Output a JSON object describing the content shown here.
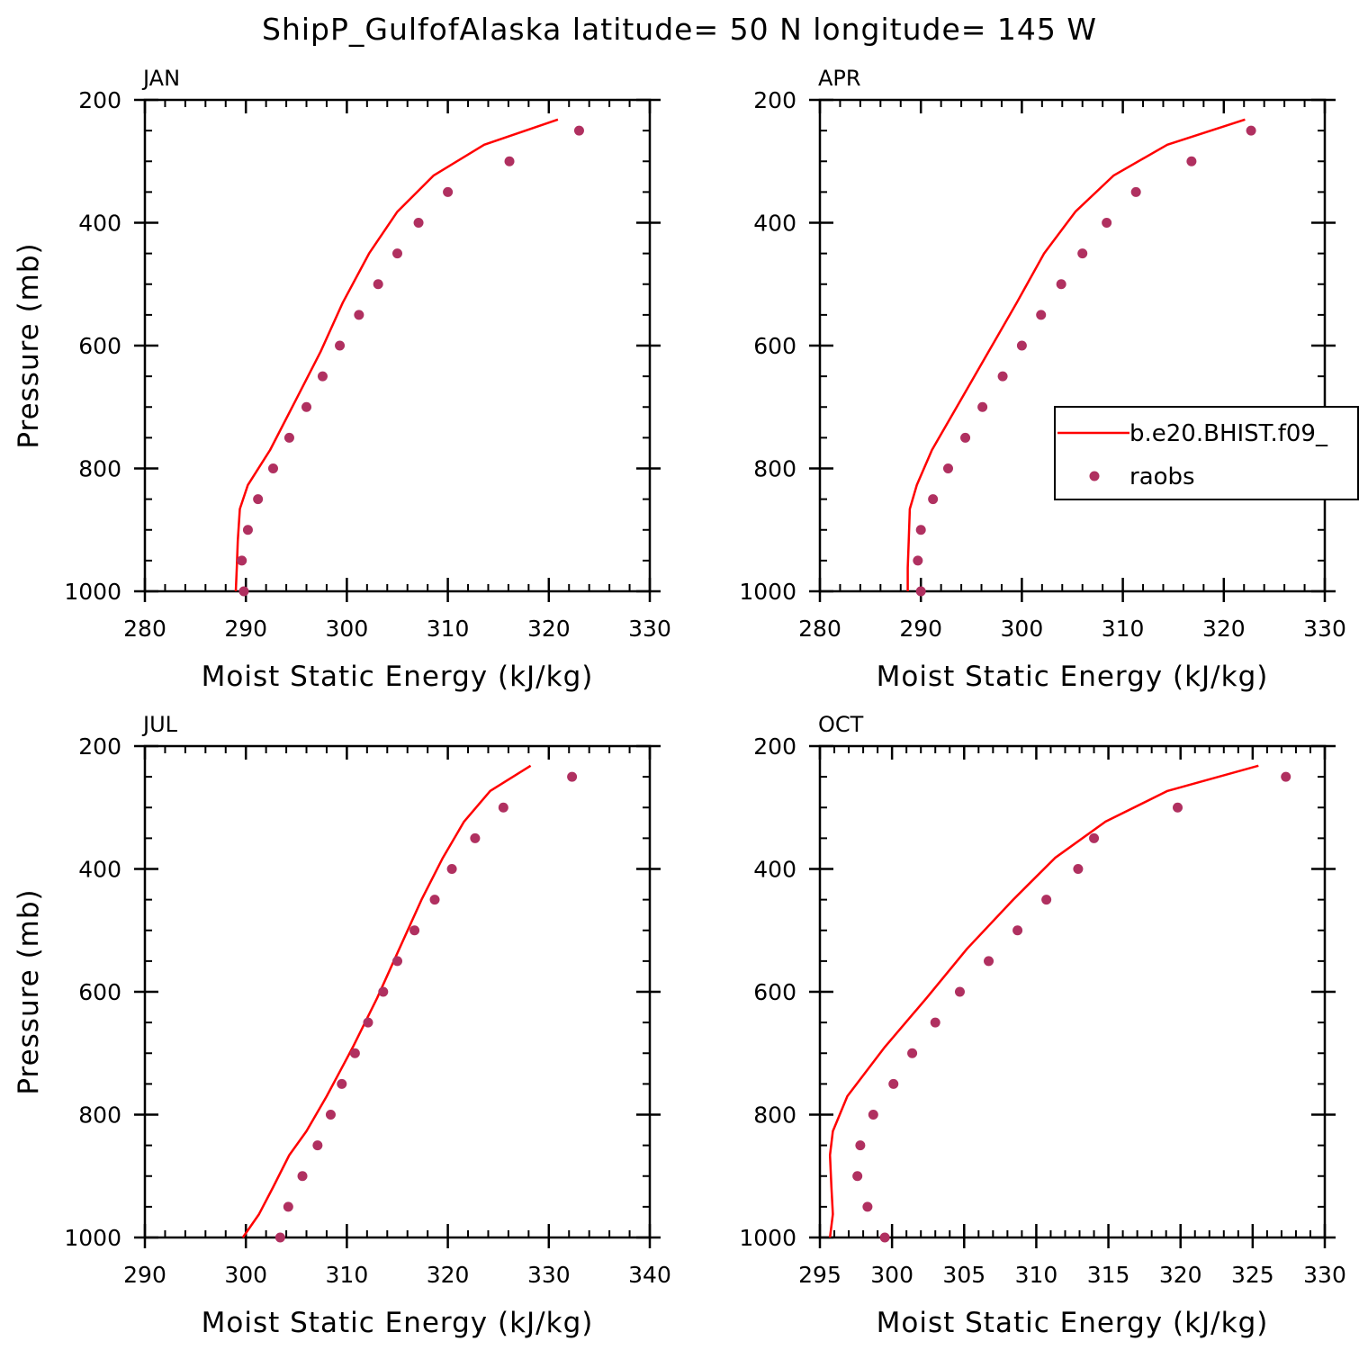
{
  "title": "ShipP_GulfofAlaska  latitude= 50 N longitude= 145 W",
  "chart_data": [
    {
      "type": "line",
      "title": "JAN",
      "xlabel": "Moist Static Energy (kJ/kg)",
      "ylabel": "Pressure (mb)",
      "xlim": [
        280,
        330
      ],
      "xticks": [
        280,
        290,
        300,
        310,
        320,
        330
      ],
      "ylim": [
        1000,
        200
      ],
      "yticks": [
        200,
        400,
        600,
        800,
        1000
      ],
      "series": [
        {
          "mode": "line",
          "color": "#ff0000",
          "x": [
            320.9,
            313.6,
            308.6,
            305.0,
            302.2,
            299.6,
            297.4,
            294.9,
            292.4,
            290.2,
            289.4,
            289.2,
            289.1,
            289.0
          ],
          "y": [
            232,
            273,
            323,
            382,
            450,
            530,
            610,
            690,
            770,
            827,
            866,
            918,
            962,
            1000
          ]
        },
        {
          "mode": "markers",
          "color": "#b03060",
          "x": [
            323.0,
            316.1,
            310.0,
            307.1,
            305.0,
            303.1,
            301.2,
            299.3,
            297.6,
            296.0,
            294.3,
            292.7,
            291.2,
            290.2,
            289.6,
            289.8
          ],
          "y": [
            250,
            300,
            350,
            400,
            450,
            500,
            550,
            600,
            650,
            700,
            750,
            800,
            850,
            900,
            950,
            1000
          ]
        }
      ]
    },
    {
      "type": "line",
      "title": "APR",
      "xlabel": "Moist Static Energy (kJ/kg)",
      "xlim": [
        280,
        330
      ],
      "xticks": [
        280,
        290,
        300,
        310,
        320,
        330
      ],
      "ylim": [
        1000,
        200
      ],
      "yticks": [
        200,
        400,
        600,
        800,
        1000
      ],
      "legend": "right",
      "series": [
        {
          "name": "b.e20.BHIST.f09_",
          "mode": "line",
          "color": "#ff0000",
          "x": [
            322.1,
            314.4,
            309.1,
            305.3,
            302.2,
            299.5,
            296.7,
            293.9,
            291.1,
            289.6,
            288.9,
            288.8,
            288.7,
            288.7
          ],
          "y": [
            232,
            273,
            323,
            382,
            450,
            530,
            610,
            690,
            770,
            827,
            866,
            918,
            962,
            1000
          ]
        },
        {
          "name": "raobs",
          "mode": "markers",
          "color": "#b03060",
          "x": [
            322.7,
            316.8,
            311.3,
            308.4,
            306.0,
            303.9,
            301.9,
            300.0,
            298.1,
            296.1,
            294.4,
            292.7,
            291.2,
            290.0,
            289.7,
            290.0
          ],
          "y": [
            250,
            300,
            350,
            400,
            450,
            500,
            550,
            600,
            650,
            700,
            750,
            800,
            850,
            900,
            950,
            1000
          ]
        }
      ]
    },
    {
      "type": "line",
      "title": "JUL",
      "xlabel": "Moist Static Energy (kJ/kg)",
      "ylabel": "Pressure (mb)",
      "xlim": [
        290,
        340
      ],
      "xticks": [
        290,
        300,
        310,
        320,
        330,
        340
      ],
      "ylim": [
        1000,
        200
      ],
      "yticks": [
        200,
        400,
        600,
        800,
        1000
      ],
      "series": [
        {
          "mode": "line",
          "color": "#ff0000",
          "x": [
            328.2,
            324.2,
            321.6,
            319.5,
            317.4,
            315.2,
            313.0,
            310.6,
            308.0,
            306.0,
            304.3,
            302.7,
            301.3,
            299.7
          ],
          "y": [
            232,
            273,
            323,
            382,
            450,
            530,
            610,
            690,
            770,
            827,
            866,
            918,
            962,
            1000
          ]
        },
        {
          "mode": "markers",
          "color": "#b03060",
          "x": [
            332.3,
            325.5,
            322.7,
            320.4,
            318.7,
            316.7,
            315.0,
            313.6,
            312.1,
            310.8,
            309.5,
            308.4,
            307.1,
            305.6,
            304.2,
            303.4
          ],
          "y": [
            250,
            300,
            350,
            400,
            450,
            500,
            550,
            600,
            650,
            700,
            750,
            800,
            850,
            900,
            950,
            1000
          ]
        }
      ]
    },
    {
      "type": "line",
      "title": "OCT",
      "xlabel": "Moist Static Energy (kJ/kg)",
      "xlim": [
        295,
        330
      ],
      "xticks": [
        295,
        300,
        305,
        310,
        315,
        320,
        325,
        330
      ],
      "ylim": [
        1000,
        200
      ],
      "yticks": [
        200,
        400,
        600,
        800,
        1000
      ],
      "series": [
        {
          "mode": "line",
          "color": "#ff0000",
          "x": [
            325.4,
            319.1,
            314.8,
            311.3,
            308.4,
            305.2,
            302.4,
            299.5,
            296.9,
            295.9,
            295.7,
            295.8,
            295.9,
            295.7
          ],
          "y": [
            232,
            273,
            323,
            382,
            450,
            530,
            610,
            690,
            770,
            827,
            866,
            918,
            962,
            1000
          ]
        },
        {
          "mode": "markers",
          "color": "#b03060",
          "x": [
            327.3,
            319.8,
            314.0,
            312.9,
            310.7,
            308.7,
            306.7,
            304.7,
            303.0,
            301.4,
            300.1,
            298.7,
            297.8,
            297.6,
            298.3,
            299.5
          ],
          "y": [
            250,
            300,
            350,
            400,
            450,
            500,
            550,
            600,
            650,
            700,
            750,
            800,
            850,
            900,
            950,
            1000
          ]
        }
      ]
    }
  ]
}
